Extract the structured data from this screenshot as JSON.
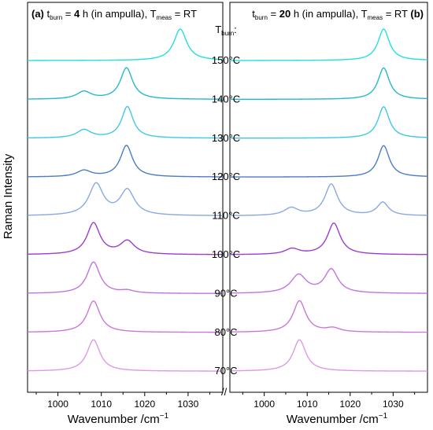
{
  "chart_data": {
    "type": "line",
    "ylabel": "Raman Intensity",
    "xlabel": "Wavenumber /cm",
    "xlabel_sup": "−1",
    "axis_break": "//",
    "t_burn_header": {
      "main": "T",
      "sub": "burn",
      "tail": ":"
    },
    "panels": [
      {
        "id": "a",
        "tag": "(a)",
        "title": {
          "t_main": "t",
          "t_sub": "burn",
          "eq": " = ",
          "value": "4",
          "unit": " h (in ampulla), ",
          "T_main": "T",
          "T_sub": "meas",
          "meas": " = RT"
        },
        "xlim": [
          993,
          1038
        ],
        "xticks": [
          1000,
          1010,
          1020,
          1030
        ]
      },
      {
        "id": "b",
        "tag": "(b)",
        "title": {
          "t_main": "t",
          "t_sub": "burn",
          "eq": " = ",
          "value": "20",
          "unit": " h (in ampulla), ",
          "T_main": "T",
          "T_sub": "meas",
          "meas": " = RT"
        },
        "xlim": [
          992,
          1038
        ],
        "xticks": [
          1000,
          1010,
          1020,
          1030
        ]
      }
    ],
    "series": [
      {
        "name": "70°C",
        "color": "#dd99e6",
        "a": [
          [
            1008.2,
            1.0,
            1.8
          ]
        ],
        "b": [
          [
            1008.2,
            1.0,
            1.8
          ]
        ]
      },
      {
        "name": "80°C",
        "color": "#cc77d8",
        "a": [
          [
            1008.2,
            1.0,
            1.8
          ]
        ],
        "b": [
          [
            1008.2,
            1.0,
            1.8
          ],
          [
            1016.0,
            0.12,
            2.0
          ]
        ]
      },
      {
        "name": "90°C",
        "color": "#c174de",
        "a": [
          [
            1008.2,
            1.0,
            1.8
          ],
          [
            1016.0,
            0.08,
            1.8
          ]
        ],
        "b": [
          [
            1008.0,
            0.58,
            2.2
          ],
          [
            1015.6,
            0.75,
            1.9
          ]
        ]
      },
      {
        "name": "100°C",
        "color": "#9a3fcc",
        "a": [
          [
            1008.2,
            1.0,
            1.8
          ],
          [
            1016.0,
            0.42,
            2.0
          ]
        ],
        "b": [
          [
            1006.5,
            0.18,
            2.0
          ],
          [
            1016.2,
            1.0,
            1.8
          ]
        ]
      },
      {
        "name": "110°C",
        "color": "#8aa8e2",
        "a": [
          [
            1008.8,
            1.0,
            2.0
          ],
          [
            1016.0,
            0.8,
            2.0
          ]
        ],
        "b": [
          [
            1006.3,
            0.24,
            2.0
          ],
          [
            1015.6,
            1.0,
            1.8
          ],
          [
            1027.6,
            0.42,
            1.6
          ]
        ]
      },
      {
        "name": "120°C",
        "color": "#4a7cc8",
        "a": [
          [
            1006.0,
            0.2,
            2.0
          ],
          [
            1015.8,
            1.0,
            1.7
          ]
        ],
        "b": [
          [
            1027.8,
            1.0,
            1.6
          ]
        ]
      },
      {
        "name": "130°C",
        "color": "#3ec8e8",
        "a": [
          [
            1006.0,
            0.26,
            2.0
          ],
          [
            1016.0,
            1.0,
            1.6
          ]
        ],
        "b": [
          [
            1027.8,
            1.0,
            1.6
          ]
        ]
      },
      {
        "name": "140°C",
        "color": "#25b9c9",
        "a": [
          [
            1006.0,
            0.24,
            2.0
          ],
          [
            1015.8,
            1.0,
            1.7
          ]
        ],
        "b": [
          [
            1027.8,
            1.0,
            1.6
          ]
        ]
      },
      {
        "name": "150°C",
        "color": "#22e0e0",
        "a": [
          [
            1028.2,
            1.0,
            1.8
          ]
        ],
        "b": [
          [
            1027.8,
            1.0,
            1.6
          ]
        ]
      }
    ]
  }
}
